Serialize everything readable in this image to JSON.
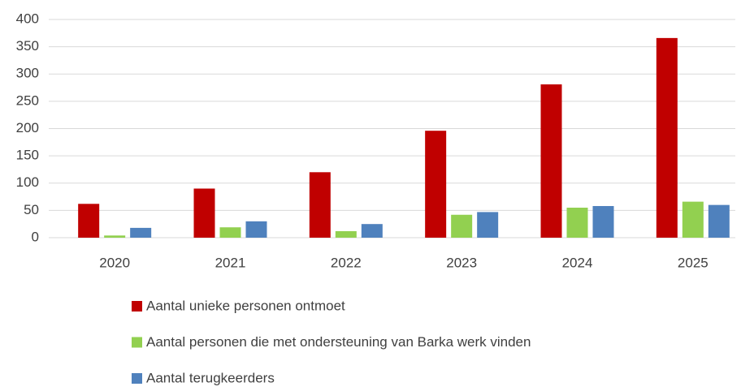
{
  "chart_data": {
    "type": "bar",
    "categories": [
      "2020",
      "2021",
      "2022",
      "2023",
      "2024",
      "2025"
    ],
    "series": [
      {
        "name": "Aantal unieke personen ontmoet",
        "color": "#c00000",
        "values": [
          62,
          90,
          120,
          196,
          281,
          366
        ]
      },
      {
        "name": "Aantal personen die met ondersteuning van Barka werk vinden",
        "color": "#92d050",
        "values": [
          4,
          19,
          12,
          42,
          55,
          66
        ]
      },
      {
        "name": "Aantal terugkeerders",
        "color": "#4f81bd",
        "values": [
          18,
          30,
          25,
          47,
          58,
          60
        ]
      }
    ],
    "ylim": [
      0,
      400
    ],
    "yticks": [
      0,
      50,
      100,
      150,
      200,
      250,
      300,
      350,
      400
    ],
    "grid": true,
    "legend": "bottom"
  }
}
